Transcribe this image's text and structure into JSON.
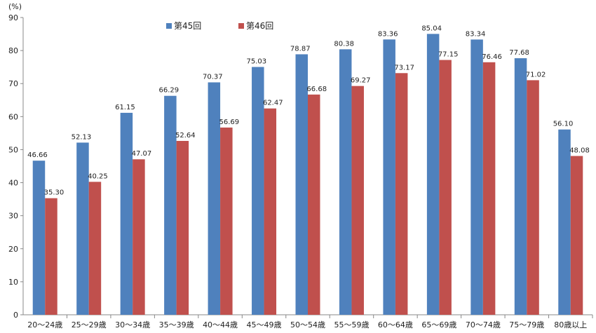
{
  "chart_data": {
    "type": "bar",
    "ylabel": "(%)",
    "ylim": [
      0,
      90
    ],
    "yticks": [
      0,
      10,
      20,
      30,
      40,
      50,
      60,
      70,
      80,
      90
    ],
    "grid": false,
    "legend_position": "top",
    "categories": [
      "20～24歳",
      "25～29歳",
      "30～34歳",
      "35～39歳",
      "40～44歳",
      "45～49歳",
      "50～54歳",
      "55～59歳",
      "60～64歳",
      "65～69歳",
      "70～74歳",
      "75～79歳",
      "80歳以上"
    ],
    "series": [
      {
        "name": "第45回",
        "color": "#4f81bd",
        "values": [
          46.66,
          52.13,
          61.15,
          66.29,
          70.37,
          75.03,
          78.87,
          80.38,
          83.36,
          85.04,
          83.34,
          77.68,
          56.1
        ],
        "labels": [
          "46.66",
          "52.13",
          "61.15",
          "66.29",
          "70.37",
          "75.03",
          "78.87",
          "80.38",
          "83.36",
          "85.04",
          "83.34",
          "77.68",
          "56.10"
        ]
      },
      {
        "name": "第46回",
        "color": "#c0504d",
        "values": [
          35.3,
          40.25,
          47.07,
          52.64,
          56.69,
          62.47,
          66.68,
          69.27,
          73.17,
          77.15,
          76.46,
          71.02,
          48.08
        ],
        "labels": [
          "35.30",
          "40.25",
          "47.07",
          "52.64",
          "56.69",
          "62.47",
          "66.68",
          "69.27",
          "73.17",
          "77.15",
          "76.46",
          "71.02",
          "48.08"
        ]
      }
    ]
  }
}
